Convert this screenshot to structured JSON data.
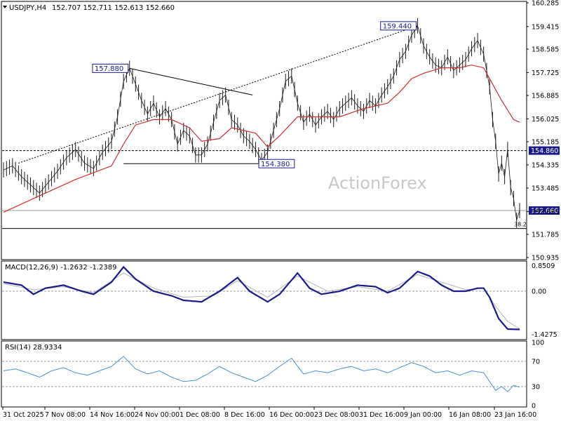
{
  "header": {
    "symbol": "USDJPY,H4",
    "ohlc": "152.707 152.711 152.613 152.660"
  },
  "watermark": "ActionForex",
  "colors": {
    "price": "#1a1a1a",
    "ma": "#d22d2d",
    "trend": "#000000",
    "macd_main": "#1a1a8c",
    "macd_signal": "#b4b4b4",
    "rsi": "#4a90d9",
    "label_bg": "#1a1a8c",
    "frame": "#000000"
  },
  "chart_data": [
    {
      "type": "line",
      "panel": "price",
      "title": "USDJPY,H4",
      "ylim": [
        150.935,
        160.285
      ],
      "y_ticks": [
        "160.285",
        "159.415",
        "158.585",
        "157.725",
        "156.885",
        "156.025",
        "155.185",
        "154.335",
        "153.485",
        "152.625",
        "151.785",
        "150.935"
      ],
      "x_ticks": [
        "31 Oct 2025",
        "7 Nov 08:00",
        "14 Nov 16:00",
        "24 Nov 00:00",
        "1 Dec 08:00",
        "8 Dec 16:00",
        "16 Dec 00:00",
        "23 Dec 08:00",
        "31 Dec 16:00",
        "9 Jan 00:00",
        "16 Jan 08:00",
        "23 Jan 16:00"
      ],
      "series": [
        {
          "role": "close",
          "points": [
            [
              0,
              154.15
            ],
            [
              3,
              154.3
            ],
            [
              6,
              153.9
            ],
            [
              9,
              153.6
            ],
            [
              12,
              153.3
            ],
            [
              15,
              153.7
            ],
            [
              18,
              154.1
            ],
            [
              21,
              154.6
            ],
            [
              24,
              154.9
            ],
            [
              27,
              154.4
            ],
            [
              30,
              154.2
            ],
            [
              33,
              154.8
            ],
            [
              36,
              155.2
            ],
            [
              38,
              156.1
            ],
            [
              40,
              157.4
            ],
            [
              42,
              157.88
            ],
            [
              44,
              157.3
            ],
            [
              46,
              156.7
            ],
            [
              48,
              156.2
            ],
            [
              50,
              156.6
            ],
            [
              52,
              156.1
            ],
            [
              54,
              156.4
            ],
            [
              56,
              156.0
            ],
            [
              58,
              155.1
            ],
            [
              60,
              155.6
            ],
            [
              62,
              155.4
            ],
            [
              64,
              154.7
            ],
            [
              66,
              154.7
            ],
            [
              68,
              155.1
            ],
            [
              70,
              155.9
            ],
            [
              72,
              156.7
            ],
            [
              74,
              156.9
            ],
            [
              76,
              156.0
            ],
            [
              78,
              155.8
            ],
            [
              80,
              155.4
            ],
            [
              82,
              155.2
            ],
            [
              84,
              154.9
            ],
            [
              86,
              154.5
            ],
            [
              88,
              154.8
            ],
            [
              90,
              155.6
            ],
            [
              92,
              156.4
            ],
            [
              94,
              157.4
            ],
            [
              96,
              157.6
            ],
            [
              98,
              156.6
            ],
            [
              100,
              155.9
            ],
            [
              102,
              156.2
            ],
            [
              104,
              155.8
            ],
            [
              106,
              156.1
            ],
            [
              108,
              156.3
            ],
            [
              110,
              156.0
            ],
            [
              112,
              156.4
            ],
            [
              114,
              156.6
            ],
            [
              116,
              156.8
            ],
            [
              118,
              156.5
            ],
            [
              120,
              156.3
            ],
            [
              122,
              156.7
            ],
            [
              124,
              156.5
            ],
            [
              126,
              156.9
            ],
            [
              128,
              157.2
            ],
            [
              130,
              157.6
            ],
            [
              132,
              158.2
            ],
            [
              134,
              158.5
            ],
            [
              136,
              159.1
            ],
            [
              138,
              159.44
            ],
            [
              140,
              158.7
            ],
            [
              142,
              158.3
            ],
            [
              144,
              158.0
            ],
            [
              146,
              157.9
            ],
            [
              148,
              158.3
            ],
            [
              150,
              157.8
            ],
            [
              152,
              158.0
            ],
            [
              154,
              158.2
            ],
            [
              156,
              158.6
            ],
            [
              158,
              158.9
            ],
            [
              160,
              158.4
            ],
            [
              162,
              157.2
            ],
            [
              163,
              156.0
            ],
            [
              164,
              155.2
            ],
            [
              165,
              154.0
            ],
            [
              166,
              154.4
            ],
            [
              167,
              153.9
            ],
            [
              168,
              154.9
            ],
            [
              169,
              153.5
            ],
            [
              170,
              153.1
            ],
            [
              171,
              152.3
            ],
            [
              172,
              152.66
            ]
          ]
        },
        {
          "role": "moving-average",
          "points": [
            [
              0,
              152.6
            ],
            [
              12,
              153.2
            ],
            [
              24,
              153.8
            ],
            [
              36,
              154.3
            ],
            [
              40,
              155.1
            ],
            [
              44,
              155.8
            ],
            [
              50,
              156.0
            ],
            [
              56,
              156.0
            ],
            [
              62,
              155.7
            ],
            [
              66,
              155.2
            ],
            [
              72,
              155.3
            ],
            [
              76,
              155.7
            ],
            [
              84,
              155.5
            ],
            [
              88,
              155.0
            ],
            [
              92,
              155.4
            ],
            [
              98,
              156.1
            ],
            [
              104,
              156.1
            ],
            [
              112,
              156.1
            ],
            [
              120,
              156.4
            ],
            [
              128,
              156.6
            ],
            [
              132,
              157.0
            ],
            [
              136,
              157.5
            ],
            [
              140,
              157.7
            ],
            [
              146,
              157.9
            ],
            [
              152,
              157.9
            ],
            [
              156,
              158.0
            ],
            [
              160,
              157.9
            ],
            [
              162,
              157.5
            ],
            [
              166,
              156.7
            ],
            [
              170,
              156.0
            ],
            [
              172,
              155.9
            ]
          ]
        }
      ],
      "annotations": [
        {
          "text": "157.880",
          "x": 42,
          "y": 157.88
        },
        {
          "text": "159.440",
          "x": 138,
          "y": 159.44
        },
        {
          "text": "154.380",
          "x": 84,
          "y": 154.38
        },
        {
          "text": "154.860",
          "y": 154.86,
          "kind": "axis-tag"
        },
        {
          "text": "152.660",
          "y": 152.66,
          "kind": "axis-tag"
        },
        {
          "text": "38.2",
          "y": 152.0,
          "kind": "fib-label"
        }
      ],
      "levels": [
        {
          "y": 154.86,
          "style": "dashed"
        },
        {
          "y": 152.66,
          "style": "solid-thin"
        },
        {
          "y": 152.0,
          "style": "solid"
        },
        {
          "from": [
            42,
            157.88
          ],
          "to": [
            83,
            156.9
          ],
          "style": "solid"
        },
        {
          "from": [
            40,
            154.38
          ],
          "to": [
            94,
            154.38
          ],
          "style": "solid"
        },
        {
          "from": [
            5,
            154.4
          ],
          "to": [
            138,
            159.44
          ],
          "style": "dotted"
        }
      ]
    },
    {
      "type": "line",
      "panel": "macd",
      "title": "MACD(12,26,9) -1.2632 -1.2389",
      "ylim": [
        -1.55,
        0.95
      ],
      "y_ticks": [
        "0.8509",
        "0.00",
        "-1.4275"
      ],
      "series": [
        {
          "name": "MACD(12,26,9)",
          "role": "main",
          "points": [
            [
              0,
              0.3
            ],
            [
              6,
              0.2
            ],
            [
              10,
              -0.1
            ],
            [
              14,
              0.1
            ],
            [
              20,
              0.2
            ],
            [
              26,
              0.0
            ],
            [
              30,
              -0.1
            ],
            [
              36,
              0.3
            ],
            [
              40,
              0.8
            ],
            [
              44,
              0.4
            ],
            [
              50,
              0.0
            ],
            [
              56,
              -0.15
            ],
            [
              60,
              -0.3
            ],
            [
              66,
              -0.35
            ],
            [
              72,
              0.0
            ],
            [
              78,
              0.45
            ],
            [
              82,
              0.0
            ],
            [
              88,
              -0.35
            ],
            [
              92,
              -0.1
            ],
            [
              98,
              0.6
            ],
            [
              102,
              0.1
            ],
            [
              106,
              -0.1
            ],
            [
              112,
              0.0
            ],
            [
              118,
              0.2
            ],
            [
              124,
              0.15
            ],
            [
              128,
              -0.05
            ],
            [
              132,
              0.1
            ],
            [
              138,
              0.65
            ],
            [
              142,
              0.5
            ],
            [
              146,
              0.2
            ],
            [
              150,
              0.0
            ],
            [
              154,
              0.0
            ],
            [
              158,
              0.1
            ],
            [
              160,
              0.1
            ],
            [
              162,
              -0.2
            ],
            [
              165,
              -0.9
            ],
            [
              168,
              -1.25
            ],
            [
              172,
              -1.26
            ]
          ]
        },
        {
          "name": "signal",
          "role": "signal",
          "points": [
            [
              0,
              0.25
            ],
            [
              10,
              0.05
            ],
            [
              20,
              0.15
            ],
            [
              30,
              -0.05
            ],
            [
              40,
              0.6
            ],
            [
              50,
              0.1
            ],
            [
              60,
              -0.2
            ],
            [
              70,
              -0.15
            ],
            [
              78,
              0.35
            ],
            [
              88,
              -0.2
            ],
            [
              98,
              0.5
            ],
            [
              108,
              0.0
            ],
            [
              118,
              0.15
            ],
            [
              128,
              0.0
            ],
            [
              138,
              0.55
            ],
            [
              146,
              0.3
            ],
            [
              154,
              0.05
            ],
            [
              160,
              0.1
            ],
            [
              164,
              -0.5
            ],
            [
              168,
              -1.0
            ],
            [
              172,
              -1.24
            ]
          ]
        }
      ]
    },
    {
      "type": "line",
      "panel": "rsi",
      "title": "RSI(14) 28.9334",
      "ylim": [
        0,
        100
      ],
      "y_ticks": [
        "100",
        "70",
        "30",
        "0"
      ],
      "levels": [
        70,
        30
      ],
      "series": [
        {
          "name": "RSI(14)",
          "points": [
            [
              0,
              55
            ],
            [
              4,
              58
            ],
            [
              8,
              52
            ],
            [
              12,
              45
            ],
            [
              16,
              55
            ],
            [
              20,
              60
            ],
            [
              24,
              52
            ],
            [
              28,
              48
            ],
            [
              32,
              55
            ],
            [
              36,
              62
            ],
            [
              40,
              78
            ],
            [
              44,
              58
            ],
            [
              48,
              50
            ],
            [
              52,
              55
            ],
            [
              56,
              45
            ],
            [
              60,
              38
            ],
            [
              64,
              40
            ],
            [
              68,
              50
            ],
            [
              72,
              62
            ],
            [
              76,
              52
            ],
            [
              80,
              45
            ],
            [
              84,
              38
            ],
            [
              88,
              48
            ],
            [
              92,
              62
            ],
            [
              96,
              75
            ],
            [
              100,
              50
            ],
            [
              104,
              55
            ],
            [
              108,
              52
            ],
            [
              112,
              58
            ],
            [
              116,
              62
            ],
            [
              120,
              55
            ],
            [
              124,
              58
            ],
            [
              128,
              52
            ],
            [
              132,
              60
            ],
            [
              136,
              68
            ],
            [
              140,
              62
            ],
            [
              144,
              52
            ],
            [
              148,
              55
            ],
            [
              152,
              48
            ],
            [
              156,
              55
            ],
            [
              160,
              52
            ],
            [
              162,
              38
            ],
            [
              164,
              24
            ],
            [
              166,
              30
            ],
            [
              168,
              22
            ],
            [
              170,
              32
            ],
            [
              172,
              29
            ]
          ]
        }
      ]
    }
  ]
}
